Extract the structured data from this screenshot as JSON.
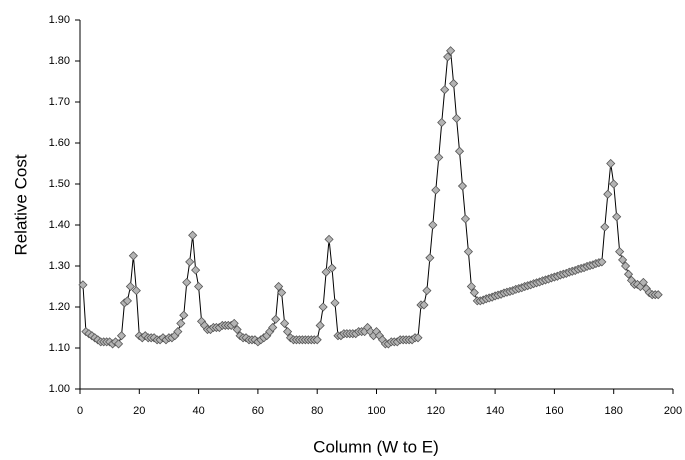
{
  "chart_data": {
    "type": "line",
    "x_label": "Column (W to E)",
    "y_label": "Relative Cost",
    "xlim": [
      0,
      200
    ],
    "xticks": [
      0,
      20,
      40,
      60,
      80,
      100,
      120,
      140,
      160,
      180,
      200
    ],
    "ylim": [
      1.0,
      1.9
    ],
    "yticks": [
      {
        "value": 1.0,
        "label": "1.00"
      },
      {
        "value": 1.1,
        "label": "1.10"
      },
      {
        "value": 1.2,
        "label": "1.20"
      },
      {
        "value": 1.3,
        "label": "1.30"
      },
      {
        "value": 1.4,
        "label": "1.40"
      },
      {
        "value": 1.5,
        "label": "1.50"
      },
      {
        "value": 1.6,
        "label": "1.60"
      },
      {
        "value": 1.7,
        "label": "1.70"
      },
      {
        "value": 1.8,
        "label": "1.80"
      },
      {
        "value": 1.9,
        "label": "1.90"
      }
    ],
    "line_color": "#000000",
    "marker_color": "#b4b4b4",
    "x": [
      1,
      2,
      3,
      4,
      5,
      6,
      7,
      8,
      9,
      10,
      11,
      12,
      13,
      14,
      15,
      16,
      17,
      18,
      19,
      20,
      21,
      22,
      23,
      24,
      25,
      26,
      27,
      28,
      29,
      30,
      31,
      32,
      33,
      34,
      35,
      36,
      37,
      38,
      39,
      40,
      41,
      42,
      43,
      44,
      45,
      46,
      47,
      48,
      49,
      50,
      51,
      52,
      53,
      54,
      55,
      56,
      57,
      58,
      59,
      60,
      61,
      62,
      63,
      64,
      65,
      66,
      67,
      68,
      69,
      70,
      71,
      72,
      73,
      74,
      75,
      76,
      77,
      78,
      79,
      80,
      81,
      82,
      83,
      84,
      85,
      86,
      87,
      88,
      89,
      90,
      91,
      92,
      93,
      94,
      95,
      96,
      97,
      98,
      99,
      100,
      101,
      102,
      103,
      104,
      105,
      106,
      107,
      108,
      109,
      110,
      111,
      112,
      113,
      114,
      115,
      116,
      117,
      118,
      119,
      120,
      121,
      122,
      123,
      124,
      125,
      126,
      127,
      128,
      129,
      130,
      131,
      132,
      133,
      134,
      135,
      136,
      137,
      138,
      139,
      140,
      141,
      142,
      143,
      144,
      145,
      146,
      147,
      148,
      149,
      150,
      151,
      152,
      153,
      154,
      155,
      156,
      157,
      158,
      159,
      160,
      161,
      162,
      163,
      164,
      165,
      166,
      167,
      168,
      169,
      170,
      171,
      172,
      173,
      174,
      175,
      176,
      177,
      178,
      179,
      180,
      181,
      182,
      183,
      184,
      185,
      186,
      187,
      188,
      189,
      190,
      191,
      192,
      193,
      194,
      195
    ],
    "values": [
      1.254,
      1.14,
      1.135,
      1.13,
      1.125,
      1.12,
      1.115,
      1.115,
      1.115,
      1.115,
      1.11,
      1.115,
      1.11,
      1.13,
      1.21,
      1.215,
      1.25,
      1.325,
      1.24,
      1.13,
      1.125,
      1.13,
      1.125,
      1.125,
      1.125,
      1.12,
      1.12,
      1.125,
      1.12,
      1.125,
      1.125,
      1.13,
      1.14,
      1.16,
      1.18,
      1.26,
      1.31,
      1.375,
      1.29,
      1.25,
      1.165,
      1.155,
      1.145,
      1.145,
      1.15,
      1.15,
      1.15,
      1.155,
      1.155,
      1.155,
      1.155,
      1.16,
      1.145,
      1.13,
      1.125,
      1.125,
      1.12,
      1.12,
      1.12,
      1.115,
      1.12,
      1.125,
      1.13,
      1.14,
      1.15,
      1.17,
      1.25,
      1.235,
      1.16,
      1.14,
      1.125,
      1.12,
      1.12,
      1.12,
      1.12,
      1.12,
      1.12,
      1.12,
      1.12,
      1.12,
      1.155,
      1.2,
      1.285,
      1.365,
      1.295,
      1.21,
      1.13,
      1.13,
      1.135,
      1.135,
      1.135,
      1.135,
      1.135,
      1.14,
      1.14,
      1.14,
      1.15,
      1.14,
      1.13,
      1.14,
      1.13,
      1.12,
      1.11,
      1.11,
      1.115,
      1.115,
      1.115,
      1.12,
      1.12,
      1.12,
      1.12,
      1.12,
      1.125,
      1.125,
      1.205,
      1.205,
      1.24,
      1.32,
      1.4,
      1.485,
      1.565,
      1.65,
      1.73,
      1.81,
      1.825,
      1.745,
      1.66,
      1.58,
      1.495,
      1.415,
      1.335,
      1.25,
      1.235,
      1.215,
      1.215,
      1.217,
      1.22,
      1.222,
      1.224,
      1.227,
      1.229,
      1.231,
      1.234,
      1.236,
      1.238,
      1.24,
      1.243,
      1.245,
      1.247,
      1.25,
      1.252,
      1.254,
      1.257,
      1.259,
      1.261,
      1.264,
      1.266,
      1.268,
      1.271,
      1.273,
      1.275,
      1.278,
      1.28,
      1.282,
      1.285,
      1.287,
      1.289,
      1.292,
      1.294,
      1.296,
      1.299,
      1.301,
      1.303,
      1.306,
      1.308,
      1.31,
      1.395,
      1.475,
      1.55,
      1.5,
      1.42,
      1.335,
      1.315,
      1.3,
      1.28,
      1.265,
      1.255,
      1.255,
      1.25,
      1.26,
      1.245,
      1.235,
      1.23,
      1.23,
      1.23
    ]
  }
}
